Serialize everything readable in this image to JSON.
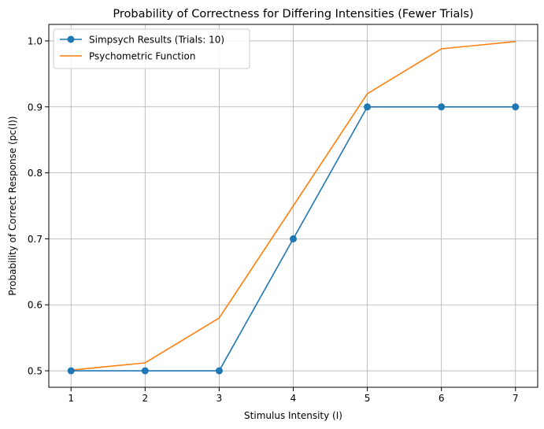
{
  "chart_data": {
    "type": "line",
    "title": "Probability of Correctness for Differing Intensities (Fewer Trials)",
    "xlabel": "Stimulus Intensity (I)",
    "ylabel": "Probability of Correct Response (pc(I))",
    "x": [
      1,
      2,
      3,
      4,
      5,
      6,
      7
    ],
    "xlim": [
      0.7,
      7.3
    ],
    "ylim": [
      0.475,
      1.025
    ],
    "xticks": [
      1,
      2,
      3,
      4,
      5,
      6,
      7
    ],
    "yticks": [
      0.5,
      0.6,
      0.7,
      0.8,
      0.9,
      1.0
    ],
    "grid": true,
    "legend_position": "top-left",
    "series": [
      {
        "name": "Simpsych Results (Trials: 10)",
        "values": [
          0.5,
          0.5,
          0.5,
          0.7,
          0.9,
          0.9,
          0.9
        ],
        "color": "#1f77b4",
        "marker": "circle"
      },
      {
        "name": "Psychometric Function",
        "values": [
          0.501,
          0.512,
          0.58,
          0.75,
          0.92,
          0.988,
          0.999
        ],
        "color": "#ff7f0e",
        "marker": "none"
      }
    ]
  }
}
